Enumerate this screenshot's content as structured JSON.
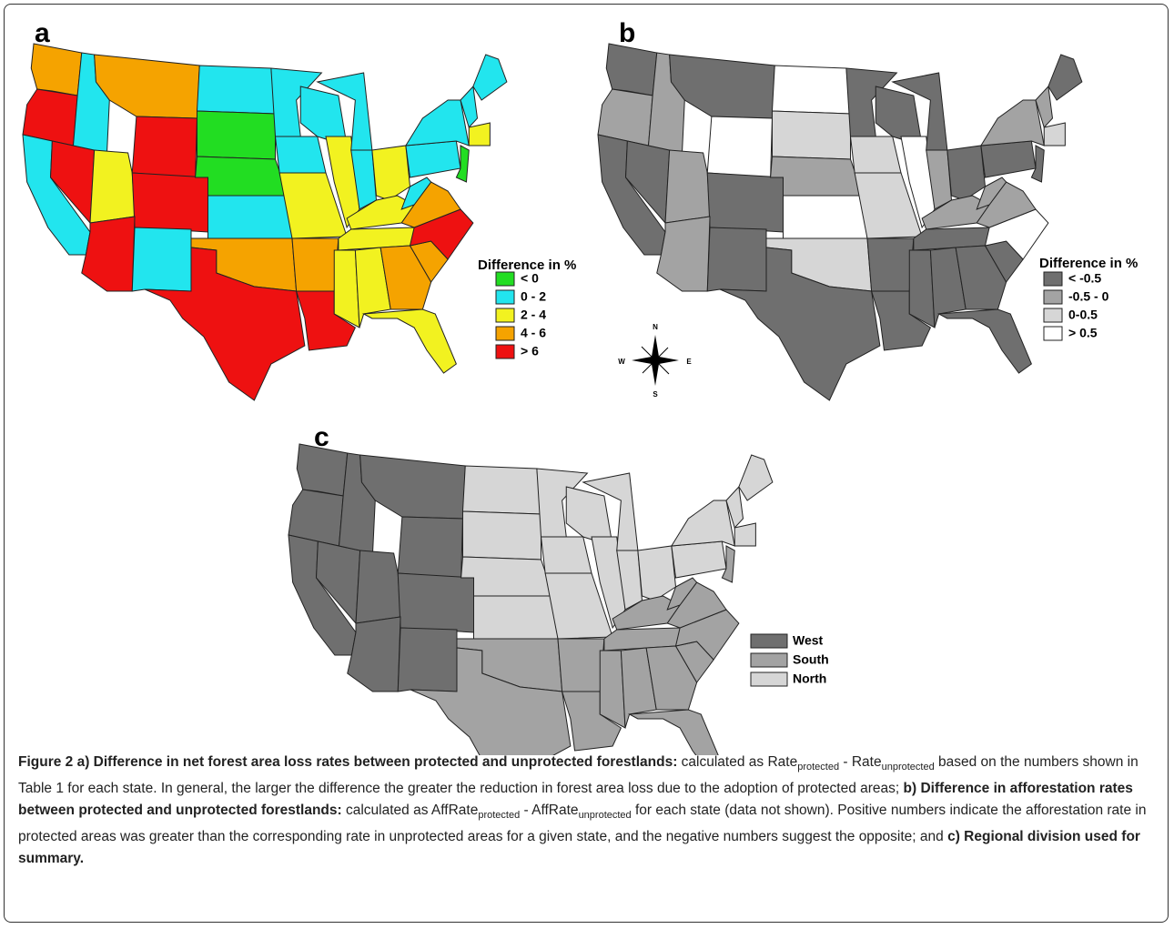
{
  "panels": [
    {
      "label": "a",
      "legend_title": "Difference in %",
      "legend": [
        {
          "label": "< 0",
          "color": "#22dd22"
        },
        {
          "label": "0 - 2",
          "color": "#22e5ee"
        },
        {
          "label": "2 - 4",
          "color": "#f2f220"
        },
        {
          "label": "4 - 6",
          "color": "#f5a300"
        },
        {
          "label": "> 6",
          "color": "#ee1111"
        }
      ]
    },
    {
      "label": "b",
      "legend_title": "Difference in %",
      "legend": [
        {
          "label": "< -0.5",
          "color": "#6f6f6f"
        },
        {
          "label": "-0.5 - 0",
          "color": "#a3a3a3"
        },
        {
          "label": "0-0.5",
          "color": "#d6d6d6"
        },
        {
          "label": "> 0.5",
          "color": "#ffffff"
        }
      ],
      "compass": {
        "n": "N",
        "s": "S",
        "e": "E",
        "w": "W"
      }
    },
    {
      "label": "c",
      "legend": [
        {
          "label": "West",
          "color": "#6f6f6f"
        },
        {
          "label": "South",
          "color": "#a3a3a3"
        },
        {
          "label": "North",
          "color": "#d6d6d6"
        }
      ]
    }
  ],
  "caption": [
    "Figure 2 a) Difference in net forest area loss rates between protected and unprotected forestlands:",
    " calculated as Rate",
    "protected",
    " - Rate",
    "unprotected",
    " based on the numbers shown in Table 1 for each state. In general, the larger the difference the greater the reduction in forest area loss due to the adoption of protected areas; ",
    "b) Difference in afforestation rates between protected and unprotected forestlands:",
    " calculated as AffRate",
    "protected",
    " - AffRate",
    "unprotected",
    " for each state (data not shown). Positive numbers indicate the afforestation rate in protected areas was greater than the corresponding rate in unprotected areas for a given state, and the negative numbers suggest the opposite; and ",
    "c) Regional division used for summary."
  ]
}
